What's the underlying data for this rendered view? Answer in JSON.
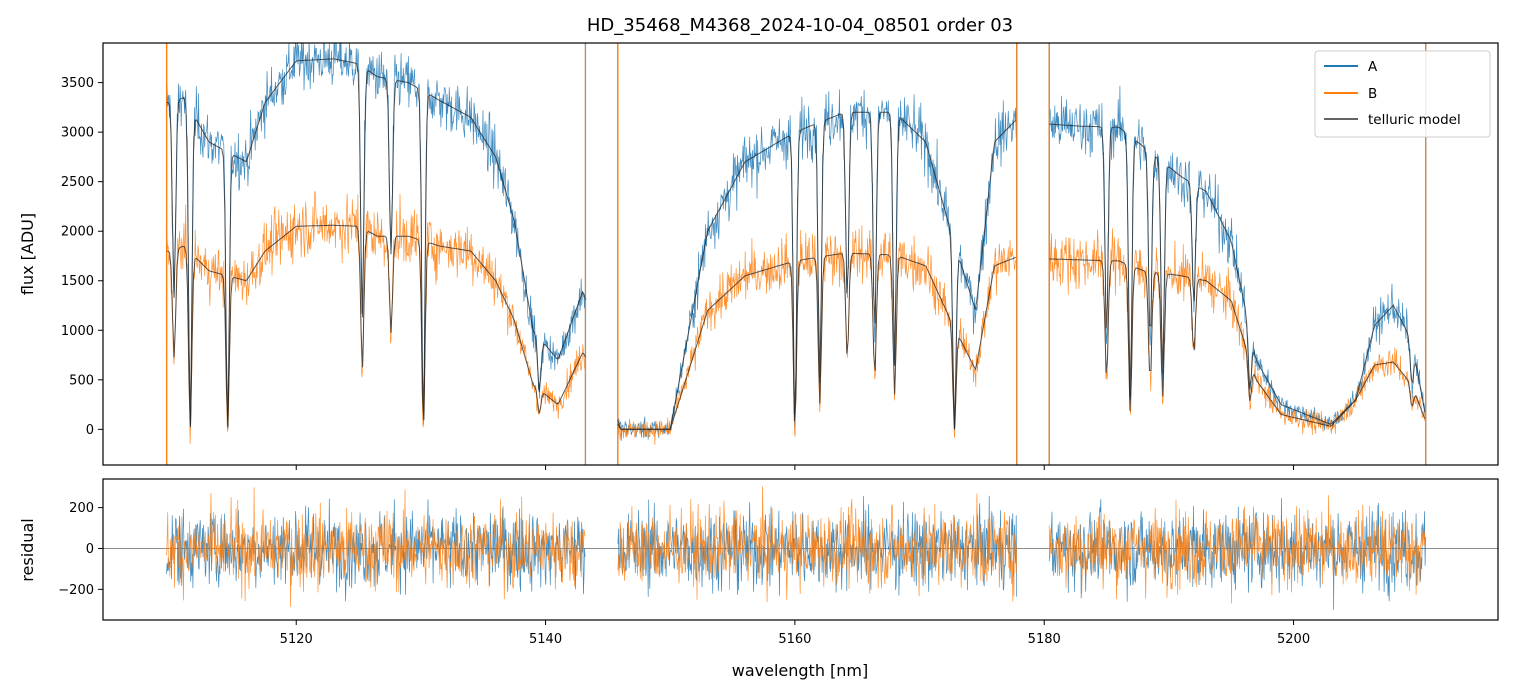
{
  "figure": {
    "title": "HD_35468_M4368_2024-10-04_08501  order 03"
  },
  "colors": {
    "A": "#1f77b4",
    "B": "#ff7f0e",
    "model": "#222222",
    "zero_line": "#666666"
  },
  "chart_data": [
    {
      "type": "line",
      "panel": "top",
      "title": "HD_35468_M4368_2024-10-04_08501  order 03",
      "xlabel": "",
      "ylabel": "flux [ADU]",
      "xlim": [
        5104.5,
        5216.4
      ],
      "ylim": [
        -360,
        3900
      ],
      "x_ticks": [
        5120,
        5140,
        5160,
        5180,
        5200
      ],
      "y_ticks": [
        0,
        500,
        1000,
        1500,
        2000,
        2500,
        3000,
        3500
      ],
      "legend_position": "top-right",
      "legend": [
        "A",
        "B",
        "telluric model"
      ],
      "segments": [
        [
          5109.6,
          5143.2
        ],
        [
          5145.8,
          5177.8
        ],
        [
          5180.4,
          5210.6
        ]
      ],
      "series": [
        {
          "name": "A",
          "kind": "noisy spectrum",
          "continuum_points": [
            [
              5109.8,
              3300
            ],
            [
              5111.0,
              3350
            ],
            [
              5113.0,
              2900
            ],
            [
              5116.0,
              2700
            ],
            [
              5117.5,
              3300
            ],
            [
              5120.0,
              3720
            ],
            [
              5123.0,
              3740
            ],
            [
              5125.0,
              3690
            ],
            [
              5126.5,
              3560
            ],
            [
              5129.0,
              3500
            ],
            [
              5131.5,
              3320
            ],
            [
              5134.0,
              3150
            ],
            [
              5136.0,
              2750
            ],
            [
              5137.5,
              2100
            ],
            [
              5139.0,
              1000
            ],
            [
              5141.0,
              700
            ],
            [
              5143.0,
              1400
            ],
            [
              5146.0,
              0
            ],
            [
              5150.0,
              0
            ],
            [
              5153.0,
              2000
            ],
            [
              5156.0,
              2700
            ],
            [
              5160.0,
              3000
            ],
            [
              5164.0,
              3200
            ],
            [
              5168.0,
              3200
            ],
            [
              5170.5,
              2900
            ],
            [
              5172.5,
              2000
            ],
            [
              5174.5,
              1200
            ],
            [
              5176.0,
              2900
            ],
            [
              5177.8,
              3130
            ],
            [
              5180.5,
              3080
            ],
            [
              5183.0,
              3060
            ],
            [
              5186.0,
              3050
            ],
            [
              5188.0,
              2850
            ],
            [
              5191.0,
              2550
            ],
            [
              5193.0,
              2400
            ],
            [
              5195.0,
              1900
            ],
            [
              5197.0,
              700
            ],
            [
              5199.0,
              250
            ],
            [
              5203.0,
              50
            ],
            [
              5205.0,
              300
            ],
            [
              5206.5,
              1050
            ],
            [
              5208.0,
              1250
            ],
            [
              5209.5,
              900
            ],
            [
              5210.6,
              120
            ]
          ],
          "absorption_lines": [
            [
              5110.2,
              0.6
            ],
            [
              5111.5,
              1.0
            ],
            [
              5114.5,
              1.0
            ],
            [
              5125.3,
              0.7
            ],
            [
              5127.6,
              0.5
            ],
            [
              5130.2,
              1.0
            ],
            [
              5139.5,
              0.6
            ],
            [
              5160.0,
              1.0
            ],
            [
              5162.0,
              0.85
            ],
            [
              5164.2,
              0.6
            ],
            [
              5166.4,
              0.7
            ],
            [
              5168.0,
              0.8
            ],
            [
              5172.8,
              1.0
            ],
            [
              5185.0,
              0.7
            ],
            [
              5186.9,
              0.9
            ],
            [
              5188.5,
              0.7
            ],
            [
              5189.5,
              0.8
            ],
            [
              5192.0,
              0.5
            ],
            [
              5196.5,
              0.6
            ],
            [
              5209.5,
              0.5
            ]
          ],
          "noise_sigma": 100
        },
        {
          "name": "B",
          "kind": "noisy spectrum",
          "continuum_points": [
            [
              5109.8,
              1800
            ],
            [
              5111.0,
              1850
            ],
            [
              5113.0,
              1600
            ],
            [
              5116.0,
              1500
            ],
            [
              5117.5,
              1800
            ],
            [
              5120.0,
              2050
            ],
            [
              5123.0,
              2060
            ],
            [
              5125.0,
              2050
            ],
            [
              5126.5,
              1950
            ],
            [
              5129.0,
              1950
            ],
            [
              5131.5,
              1850
            ],
            [
              5134.0,
              1800
            ],
            [
              5136.0,
              1500
            ],
            [
              5137.5,
              1100
            ],
            [
              5139.0,
              450
            ],
            [
              5141.0,
              250
            ],
            [
              5143.0,
              780
            ],
            [
              5146.0,
              0
            ],
            [
              5150.0,
              0
            ],
            [
              5153.0,
              1200
            ],
            [
              5156.0,
              1550
            ],
            [
              5160.0,
              1700
            ],
            [
              5164.0,
              1780
            ],
            [
              5168.0,
              1760
            ],
            [
              5170.5,
              1650
            ],
            [
              5172.5,
              1100
            ],
            [
              5174.5,
              600
            ],
            [
              5176.0,
              1650
            ],
            [
              5177.8,
              1740
            ],
            [
              5180.5,
              1720
            ],
            [
              5183.0,
              1710
            ],
            [
              5186.0,
              1700
            ],
            [
              5188.0,
              1600
            ],
            [
              5191.0,
              1550
            ],
            [
              5193.0,
              1500
            ],
            [
              5195.0,
              1300
            ],
            [
              5197.0,
              500
            ],
            [
              5199.0,
              150
            ],
            [
              5203.0,
              30
            ],
            [
              5205.0,
              300
            ],
            [
              5206.5,
              650
            ],
            [
              5208.0,
              680
            ],
            [
              5209.5,
              450
            ],
            [
              5210.6,
              80
            ]
          ],
          "absorption_lines": [
            [
              5110.2,
              0.6
            ],
            [
              5111.5,
              1.0
            ],
            [
              5114.5,
              1.0
            ],
            [
              5125.3,
              0.7
            ],
            [
              5127.6,
              0.5
            ],
            [
              5130.2,
              1.0
            ],
            [
              5139.5,
              0.6
            ],
            [
              5160.0,
              1.0
            ],
            [
              5162.0,
              0.85
            ],
            [
              5164.2,
              0.6
            ],
            [
              5166.4,
              0.7
            ],
            [
              5168.0,
              0.8
            ],
            [
              5172.8,
              1.0
            ],
            [
              5185.0,
              0.7
            ],
            [
              5186.9,
              0.9
            ],
            [
              5188.5,
              0.7
            ],
            [
              5189.5,
              0.8
            ],
            [
              5192.0,
              0.5
            ],
            [
              5196.5,
              0.6
            ],
            [
              5209.5,
              0.5
            ]
          ],
          "noise_sigma": 110
        },
        {
          "name": "telluric model",
          "kind": "smooth model overlaid on A and B"
        }
      ]
    },
    {
      "type": "line",
      "panel": "bottom",
      "xlabel": "wavelength [nm]",
      "ylabel": "residual",
      "xlim": [
        5104.5,
        5216.4
      ],
      "ylim": [
        -350,
        340
      ],
      "x_ticks": [
        5120,
        5140,
        5160,
        5180,
        5200
      ],
      "y_ticks": [
        -200,
        0,
        200
      ],
      "zero_line": true,
      "series": [
        {
          "name": "A",
          "noise_sigma": 95
        },
        {
          "name": "B",
          "noise_sigma": 95
        }
      ]
    }
  ]
}
